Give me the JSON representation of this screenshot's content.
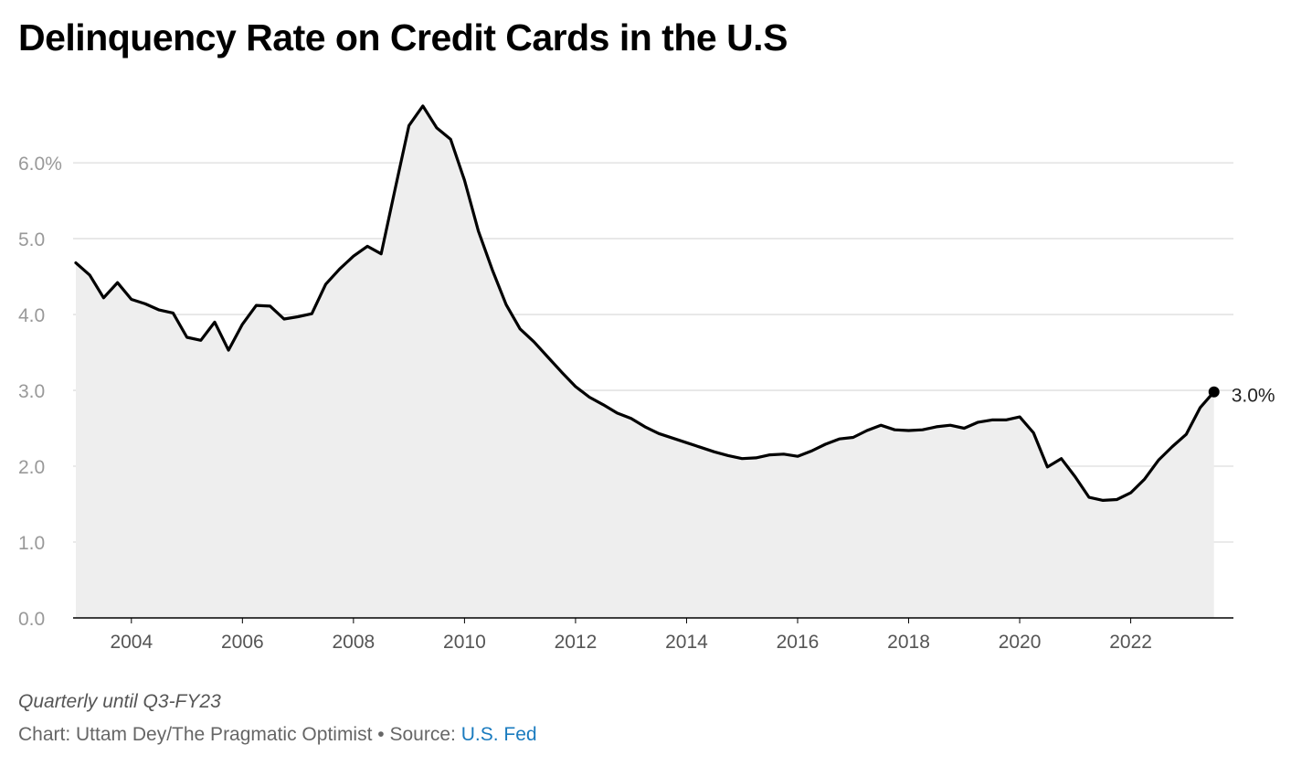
{
  "title": "Delinquency Rate on Credit Cards in the U.S",
  "note": "Quarterly until Q3-FY23",
  "credit": {
    "chart_by": "Chart: Uttam Dey/The Pragmatic Optimist",
    "separator": " • ",
    "source_label": "Source: ",
    "source_link_text": "U.S. Fed"
  },
  "colors": {
    "line": "#000000",
    "area": "#eeeeee",
    "grid": "#dddddd",
    "source_link": "#1a7bbf"
  },
  "chart_data": {
    "type": "area",
    "title": "Delinquency Rate on Credit Cards in the U.S",
    "xlabel": "",
    "ylabel": "",
    "xlim": [
      2002.95,
      2023.85
    ],
    "ylim": [
      0,
      6.7
    ],
    "yticks": [
      0,
      1,
      2,
      3,
      4,
      5,
      6
    ],
    "ytick_labels": [
      "0.0",
      "1.0",
      "2.0",
      "3.0",
      "4.0",
      "5.0",
      "6.0%"
    ],
    "xticks": [
      2004,
      2006,
      2008,
      2010,
      2012,
      2014,
      2016,
      2018,
      2020,
      2022
    ],
    "xtick_labels": [
      "2004",
      "2006",
      "2008",
      "2010",
      "2012",
      "2014",
      "2016",
      "2018",
      "2020",
      "2022"
    ],
    "grid": true,
    "legend": "none",
    "end_label": "3.0%",
    "series": [
      {
        "x": [
          2003.0,
          2003.25,
          2003.5,
          2003.75,
          2004.0,
          2004.25,
          2004.5,
          2004.75,
          2005.0,
          2005.25,
          2005.5,
          2005.75,
          2006.0,
          2006.25,
          2006.5,
          2006.75,
          2007.0,
          2007.25,
          2007.5,
          2007.75,
          2008.0,
          2008.25,
          2008.5,
          2008.75,
          2009.0,
          2009.25,
          2009.5,
          2009.75,
          2010.0,
          2010.25,
          2010.5,
          2010.75,
          2011.0,
          2011.25,
          2011.5,
          2011.75,
          2012.0,
          2012.25,
          2012.5,
          2012.75,
          2013.0,
          2013.25,
          2013.5,
          2013.75,
          2014.0,
          2014.25,
          2014.5,
          2014.75,
          2015.0,
          2015.25,
          2015.5,
          2015.75,
          2016.0,
          2016.25,
          2016.5,
          2016.75,
          2017.0,
          2017.25,
          2017.5,
          2017.75,
          2018.0,
          2018.25,
          2018.5,
          2018.75,
          2019.0,
          2019.25,
          2019.5,
          2019.75,
          2020.0,
          2020.25,
          2020.5,
          2020.75,
          2021.0,
          2021.25,
          2021.5,
          2021.75,
          2022.0,
          2022.25,
          2022.5,
          2022.75,
          2023.0,
          2023.25,
          2023.5
        ],
        "values": [
          4.68,
          4.52,
          4.22,
          4.42,
          4.2,
          4.14,
          4.06,
          4.02,
          3.7,
          3.66,
          3.9,
          3.53,
          3.87,
          4.12,
          4.11,
          3.94,
          3.97,
          4.01,
          4.4,
          4.6,
          4.77,
          4.9,
          4.8,
          5.65,
          6.49,
          6.75,
          6.46,
          6.31,
          5.77,
          5.1,
          4.59,
          4.13,
          3.81,
          3.64,
          3.44,
          3.24,
          3.05,
          2.91,
          2.81,
          2.7,
          2.63,
          2.52,
          2.43,
          2.37,
          2.31,
          2.25,
          2.19,
          2.14,
          2.1,
          2.11,
          2.15,
          2.16,
          2.13,
          2.2,
          2.29,
          2.36,
          2.38,
          2.47,
          2.54,
          2.48,
          2.47,
          2.48,
          2.52,
          2.54,
          2.5,
          2.58,
          2.61,
          2.61,
          2.65,
          2.44,
          1.99,
          2.1,
          1.86,
          1.59,
          1.55,
          1.56,
          1.65,
          1.83,
          2.08,
          2.26,
          2.42,
          2.77,
          2.98
        ]
      }
    ]
  }
}
